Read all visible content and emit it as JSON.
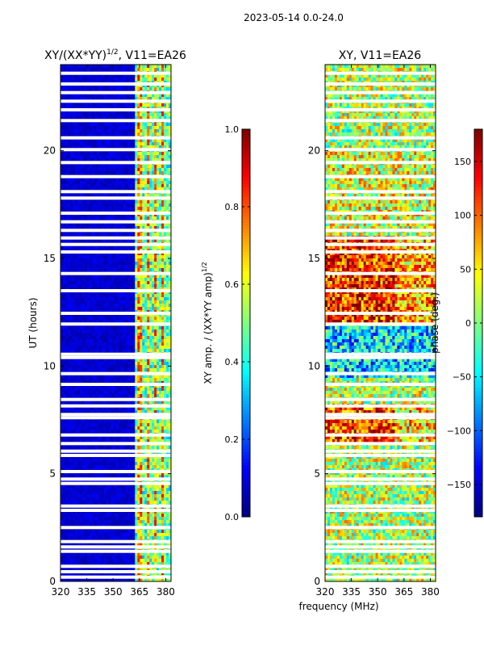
{
  "figure_title": "2023-05-14 0.0-24.0",
  "colors": {
    "jet": [
      "#00007f",
      "#0000ff",
      "#007fff",
      "#00ffff",
      "#7fff7f",
      "#ffff00",
      "#ff7f00",
      "#ff0000",
      "#7f0000"
    ]
  },
  "chart_data": [
    {
      "type": "heatmap",
      "title": "XY/(XX*YY)^{1/2}, V11=EA26",
      "title_main": "XY/(XX*YY)",
      "title_sup": "1/2",
      "title_tail": ", V11=EA26",
      "xlabel": "frequency (MHz)",
      "ylabel": "UT (hours)",
      "xlim": [
        320,
        383
      ],
      "ylim": [
        0,
        24
      ],
      "xticks": [
        "320",
        "335",
        "350",
        "365",
        "380"
      ],
      "yticks": [
        "0",
        "5",
        "10",
        "15",
        "20"
      ],
      "colorbar": {
        "label": "XY amp. / (XX*YY amp)^{1/2}",
        "label_main": "XY amp. / (XX*YY amp)",
        "label_sup": "1/2",
        "range": [
          0.0,
          1.0
        ],
        "ticks": [
          "0.0",
          "0.2",
          "0.4",
          "0.6",
          "0.8",
          "1.0"
        ]
      }
    },
    {
      "type": "heatmap",
      "title": "XY, V11=EA26",
      "xlabel": "frequency (MHz)",
      "ylabel": "",
      "xlim": [
        320,
        383
      ],
      "ylim": [
        0,
        24
      ],
      "xticks": [
        "320",
        "335",
        "350",
        "365",
        "380"
      ],
      "yticks": [
        "0",
        "5",
        "10",
        "15",
        "20"
      ],
      "colorbar": {
        "label": "phase (deg.)",
        "range": [
          -180,
          180
        ],
        "ticks": [
          "−150",
          "−100",
          "−50",
          "0",
          "50",
          "100",
          "150"
        ]
      }
    }
  ]
}
